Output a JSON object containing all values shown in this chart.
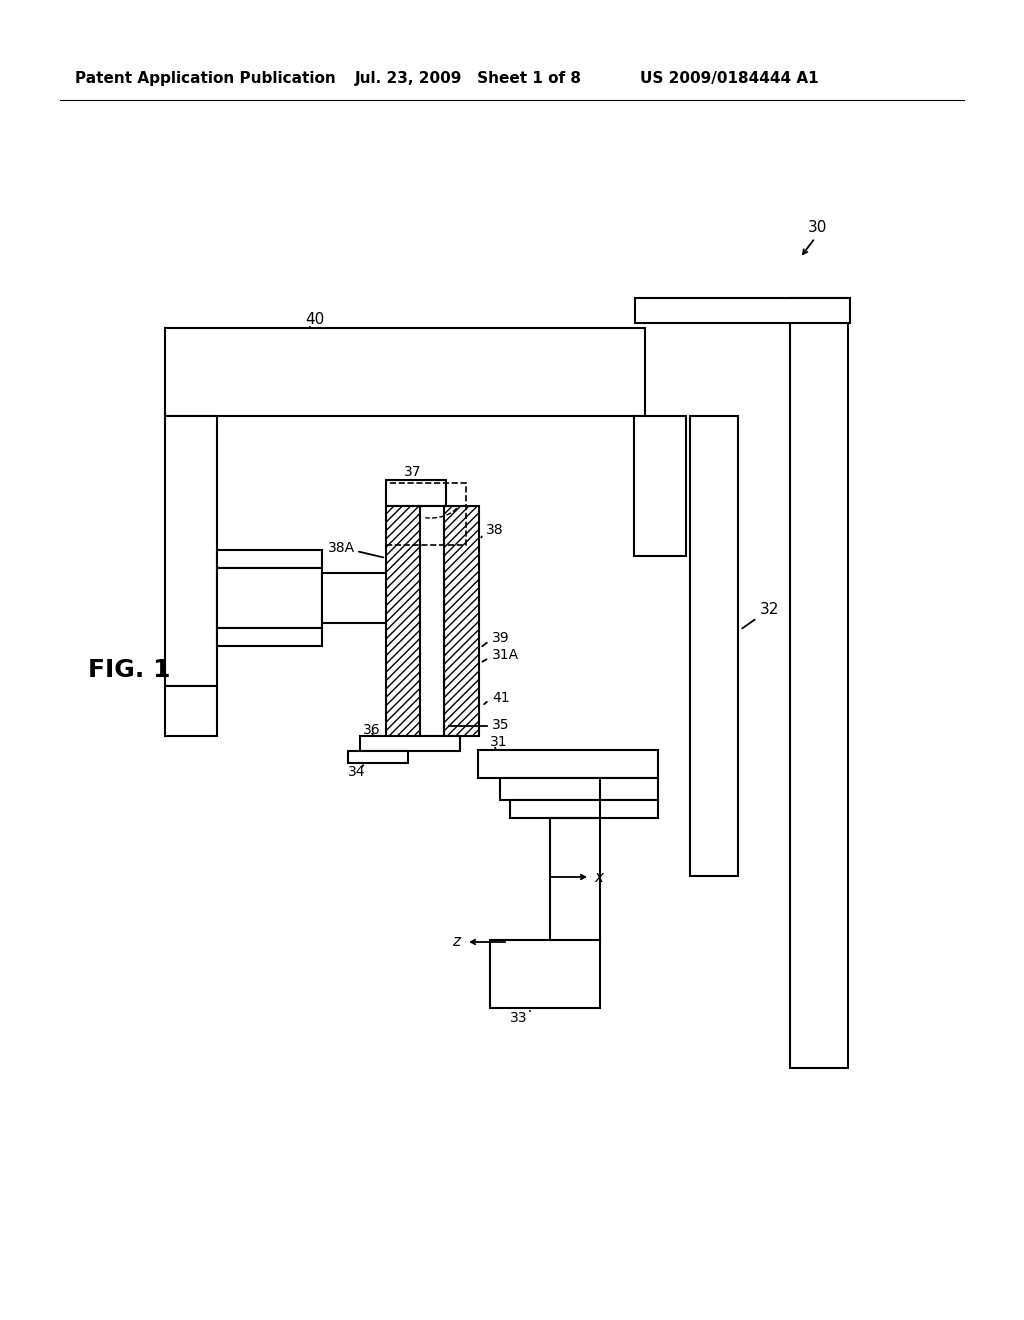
{
  "bg_color": "#ffffff",
  "line_color": "#000000",
  "header_left": "Patent Application Publication",
  "header_mid": "Jul. 23, 2009   Sheet 1 of 8",
  "header_right": "US 2009/0184444 A1",
  "fig_label": "FIG. 1",
  "ref_30": "30",
  "ref_31": "31",
  "ref_31A": "31A",
  "ref_32": "32",
  "ref_33": "33",
  "ref_34": "34",
  "ref_35": "35",
  "ref_36": "36",
  "ref_37": "37",
  "ref_38": "38",
  "ref_38A": "38A",
  "ref_39": "39",
  "ref_40": "40",
  "ref_41": "41",
  "axis_x": "x",
  "axis_z": "z"
}
